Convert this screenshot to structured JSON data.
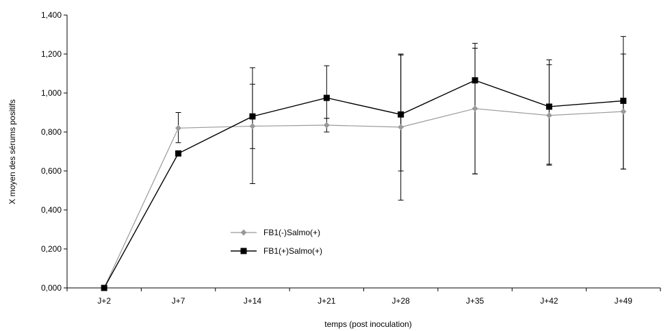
{
  "chart_data": {
    "type": "line",
    "xlabel": "temps (post inoculation)",
    "ylabel": "X moyen des sérums positifs",
    "categories": [
      "J+2",
      "J+7",
      "J+14",
      "J+21",
      "J+28",
      "J+35",
      "J+42",
      "J+49"
    ],
    "y_ticks": [
      "0,000",
      "0,200",
      "0,400",
      "0,600",
      "0,800",
      "1,000",
      "1,200",
      "1,400"
    ],
    "ylim": [
      0,
      1.4
    ],
    "grid": false,
    "legend_position": "center-left",
    "series": [
      {
        "name": "FB1(-)Salmo(+)",
        "color": "#999999",
        "marker": "diamond",
        "values": [
          0.0,
          0.82,
          0.83,
          0.835,
          0.825,
          0.92,
          0.885,
          0.905
        ],
        "err_low": [
          0.0,
          0.745,
          0.715,
          0.8,
          0.6,
          0.585,
          0.635,
          0.61
        ],
        "err_high": [
          0.0,
          0.9,
          1.045,
          0.87,
          1.195,
          1.23,
          1.145,
          1.2
        ]
      },
      {
        "name": "FB1(+)Salmo(+)",
        "color": "#000000",
        "marker": "square",
        "values": [
          0.0,
          0.69,
          0.88,
          0.975,
          0.89,
          1.065,
          0.93,
          0.96
        ],
        "err_low": [
          0.0,
          0.69,
          0.535,
          0.87,
          0.45,
          0.585,
          0.63,
          0.61
        ],
        "err_high": [
          0.0,
          0.69,
          1.13,
          1.14,
          1.2,
          1.255,
          1.17,
          1.29
        ]
      }
    ]
  }
}
